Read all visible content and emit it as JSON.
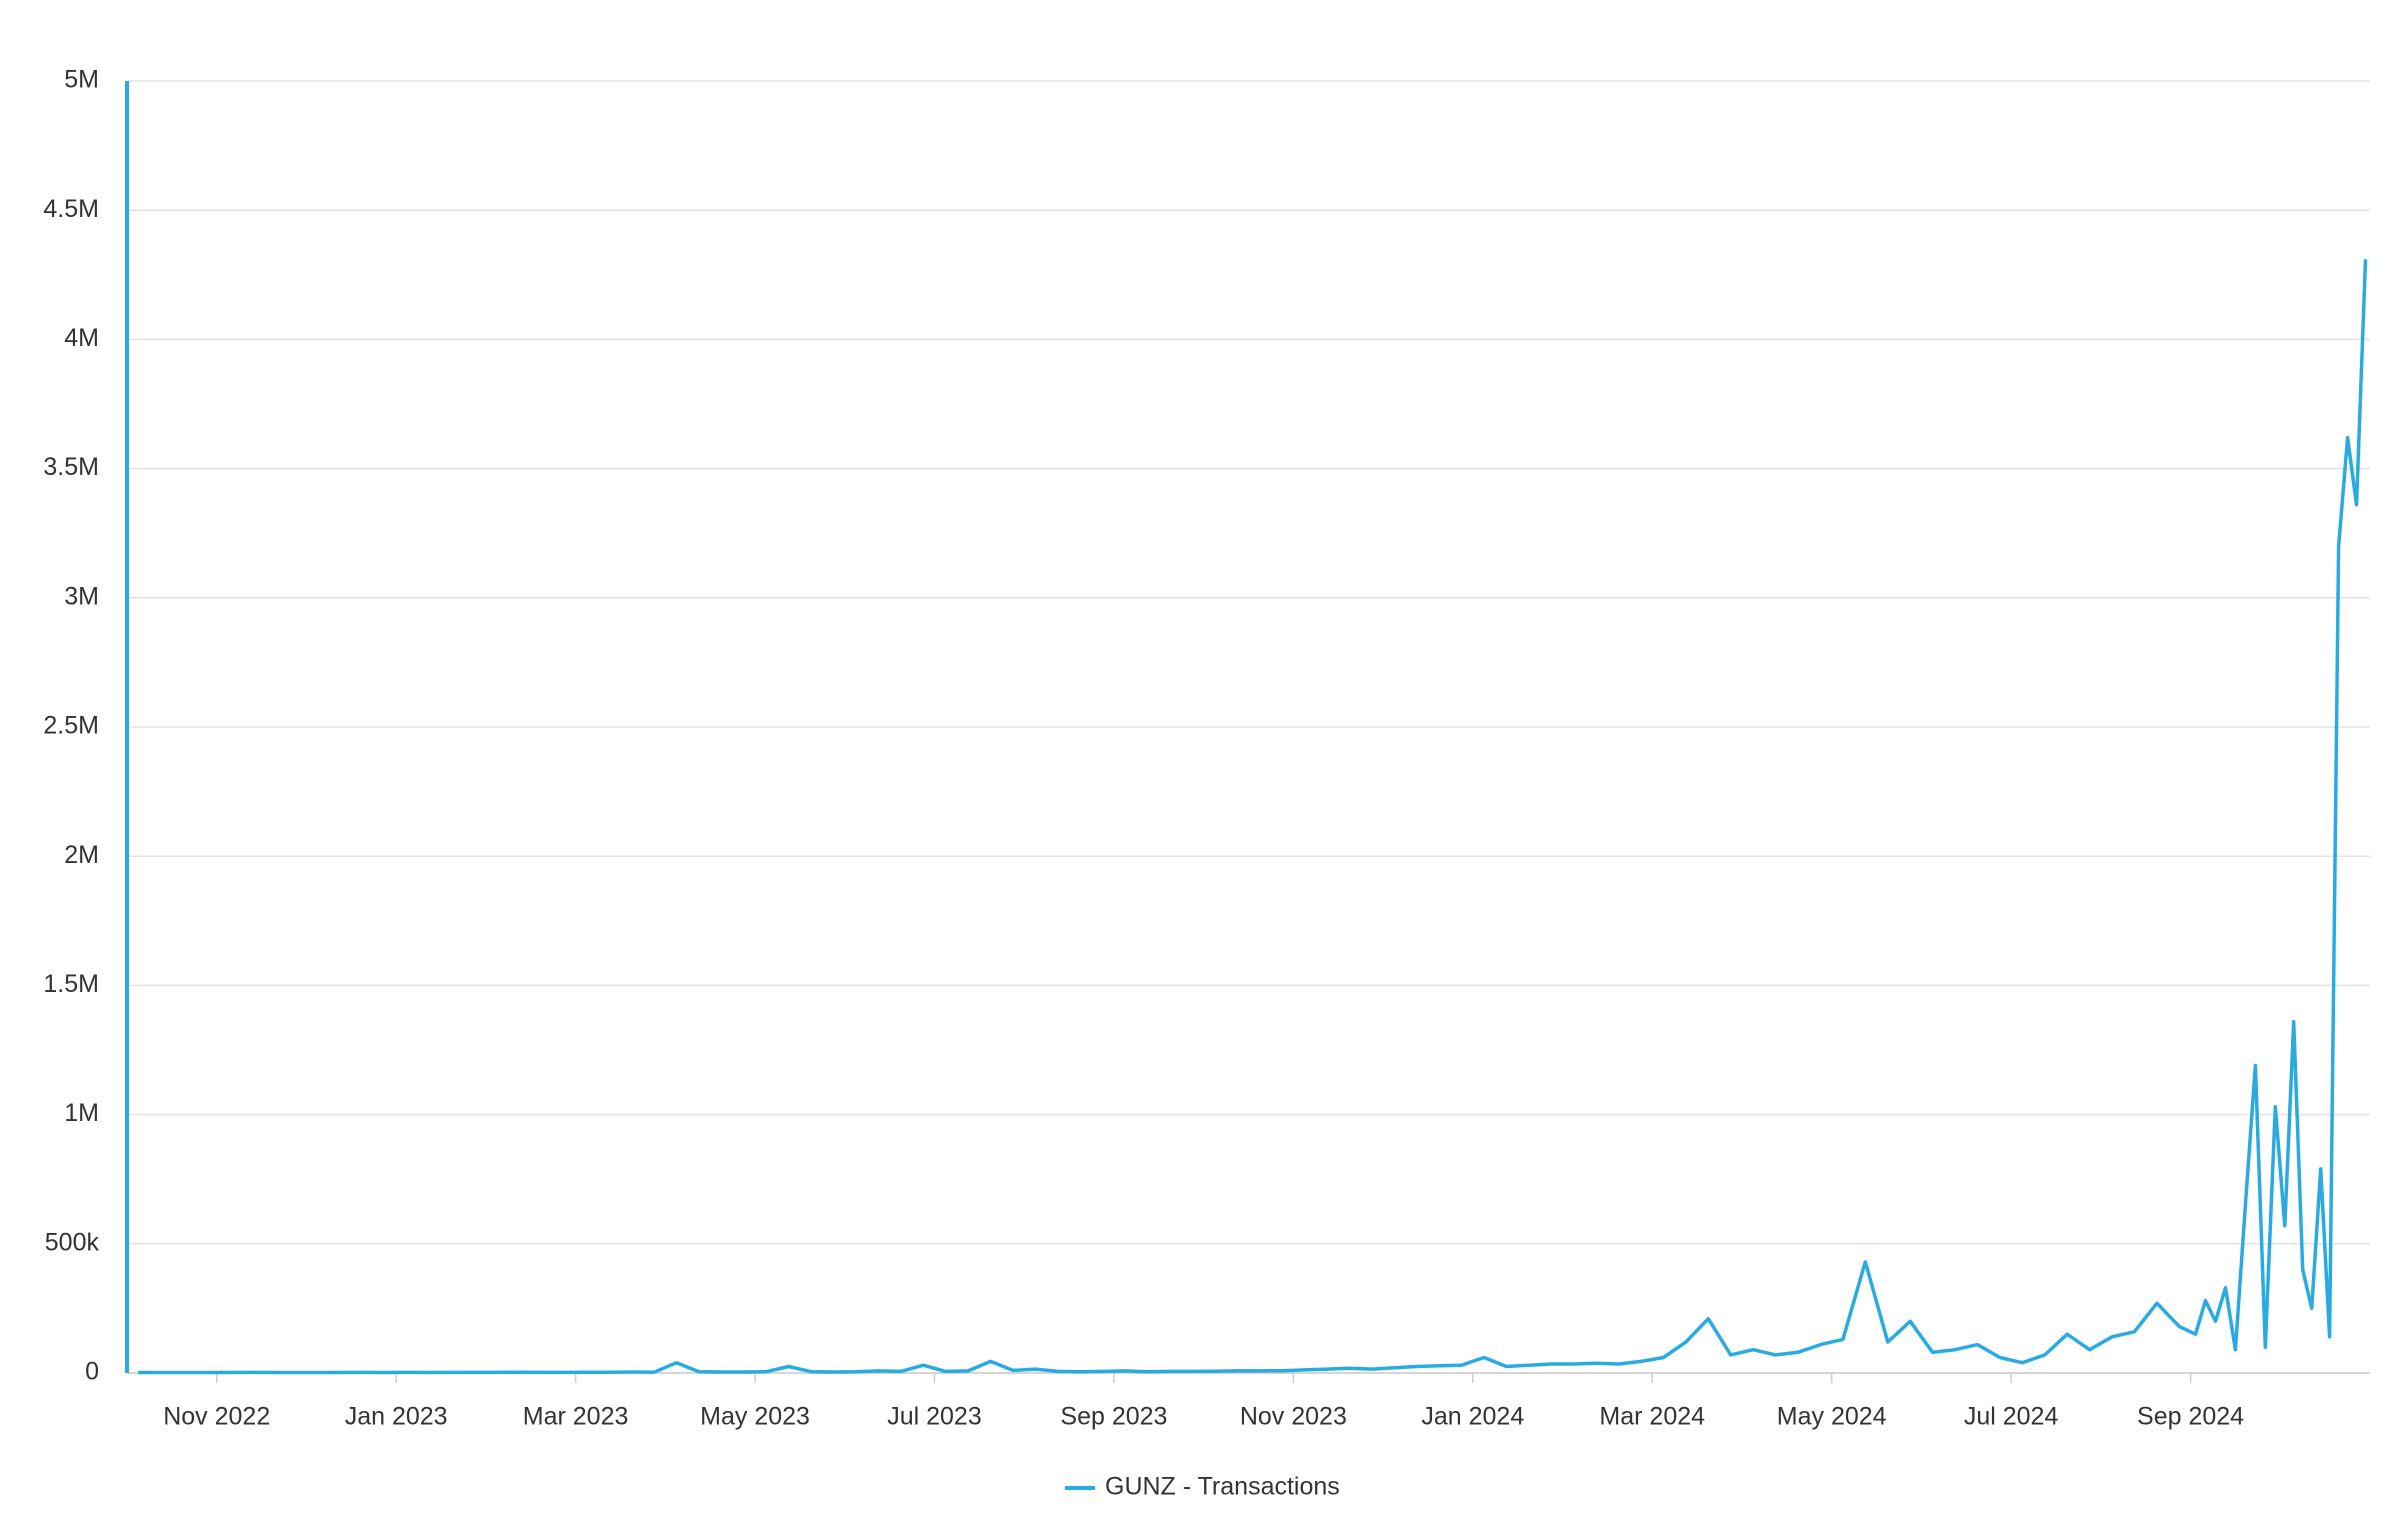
{
  "chart_data": {
    "type": "line",
    "x": [
      "2022-10",
      "2022-10",
      "2022-10",
      "2022-10",
      "2022-11",
      "2022-11",
      "2022-11",
      "2022-11",
      "2022-12",
      "2022-12",
      "2022-12",
      "2022-12",
      "2023-01",
      "2023-01",
      "2023-01",
      "2023-01",
      "2023-02",
      "2023-02",
      "2023-02",
      "2023-02",
      "2023-03",
      "2023-03",
      "2023-03",
      "2023-03",
      "2023-04",
      "2023-04",
      "2023-04",
      "2023-04",
      "2023-05",
      "2023-05",
      "2023-05",
      "2023-05",
      "2023-06",
      "2023-06",
      "2023-06",
      "2023-06",
      "2023-07",
      "2023-07",
      "2023-07",
      "2023-07",
      "2023-08",
      "2023-08",
      "2023-08",
      "2023-08",
      "2023-09",
      "2023-09",
      "2023-09",
      "2023-09",
      "2023-10",
      "2023-10",
      "2023-10",
      "2023-10",
      "2023-11",
      "2023-11",
      "2023-11",
      "2023-11",
      "2023-12",
      "2023-12",
      "2023-12",
      "2023-12",
      "2024-01",
      "2024-01",
      "2024-01",
      "2024-01",
      "2024-02",
      "2024-02",
      "2024-02",
      "2024-02",
      "2024-03",
      "2024-03",
      "2024-03",
      "2024-03",
      "2024-04",
      "2024-04",
      "2024-04",
      "2024-04",
      "2024-05",
      "2024-05",
      "2024-05",
      "2024-05",
      "2024-06",
      "2024-06",
      "2024-06",
      "2024-06",
      "2024-07",
      "2024-07",
      "2024-07",
      "2024-07",
      "2024-08",
      "2024-08",
      "2024-08",
      "2024-08",
      "2024-09",
      "2024-09",
      "2024-09",
      "2024-09",
      "2024-09",
      "2024-09",
      "2024-09",
      "2024-09",
      "2024-09",
      "2024-10",
      "2024-10",
      "2024-10",
      "2024-10",
      "2024-10",
      "2024-10",
      "2024-10",
      "2024-10",
      "2024-10",
      "2024-10"
    ],
    "series": [
      {
        "name": "GUNZ - Transactions",
        "color": "#29abe2",
        "values": [
          2000,
          2000,
          2000,
          2000,
          2000,
          2500,
          2000,
          2000,
          2000,
          2000,
          2500,
          2000,
          2500,
          2000,
          2500,
          2500,
          2500,
          3000,
          2500,
          2500,
          3000,
          3000,
          4000,
          3000,
          40000,
          5000,
          4000,
          4000,
          5000,
          25000,
          5000,
          4000,
          5000,
          8000,
          6000,
          30000,
          6000,
          8000,
          45000,
          10000,
          15000,
          6000,
          5000,
          6000,
          8000,
          5000,
          6000,
          6000,
          7000,
          8000,
          8000,
          9000,
          12000,
          15000,
          18000,
          15000,
          20000,
          25000,
          28000,
          30000,
          60000,
          25000,
          30000,
          35000,
          35000,
          38000,
          35000,
          45000,
          60000,
          120000,
          210000,
          70000,
          90000,
          70000,
          80000,
          110000,
          130000,
          430000,
          120000,
          200000,
          80000,
          90000,
          110000,
          60000,
          40000,
          70000,
          150000,
          90000,
          140000,
          160000,
          270000,
          180000,
          150000,
          280000,
          200000,
          330000,
          90000,
          650000,
          1190000,
          100000,
          1030000,
          570000,
          1360000,
          400000,
          250000,
          790000,
          140000,
          3200000,
          3620000,
          3360000,
          4310000
        ]
      }
    ],
    "xlim": [
      "2022-10",
      "2024-10"
    ],
    "xticks": [
      {
        "value": "2022-11",
        "label": "Nov 2022"
      },
      {
        "value": "2023-01",
        "label": "Jan 2023"
      },
      {
        "value": "2023-03",
        "label": "Mar 2023"
      },
      {
        "value": "2023-05",
        "label": "May 2023"
      },
      {
        "value": "2023-07",
        "label": "Jul 2023"
      },
      {
        "value": "2023-09",
        "label": "Sep 2023"
      },
      {
        "value": "2023-11",
        "label": "Nov 2023"
      },
      {
        "value": "2024-01",
        "label": "Jan 2024"
      },
      {
        "value": "2024-03",
        "label": "Mar 2024"
      },
      {
        "value": "2024-05",
        "label": "May 2024"
      },
      {
        "value": "2024-07",
        "label": "Jul 2024"
      },
      {
        "value": "2024-09",
        "label": "Sep 2024"
      }
    ],
    "ylim": [
      0,
      5000000
    ],
    "yticks": [
      0,
      {
        "value": 500000,
        "label": "500k"
      },
      {
        "value": 1000000,
        "label": "1M"
      },
      {
        "value": 1500000,
        "label": "1.5M"
      },
      {
        "value": 2000000,
        "label": "2M"
      },
      {
        "value": 2500000,
        "label": "2.5M"
      },
      {
        "value": 3000000,
        "label": "3M"
      },
      {
        "value": 3500000,
        "label": "3.5M"
      },
      {
        "value": 4000000,
        "label": "4M"
      },
      {
        "value": 4500000,
        "label": "4.5M"
      },
      {
        "value": 5000000,
        "label": "5M"
      }
    ],
    "grid": true,
    "legend": "bottom"
  }
}
